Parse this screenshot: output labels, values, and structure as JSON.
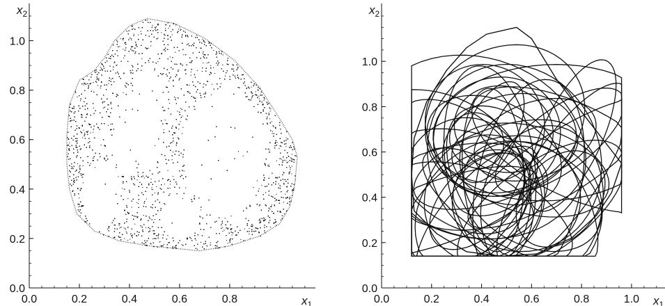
{
  "chart_data": [
    {
      "type": "scatter",
      "title": "",
      "xlabel": "x1",
      "ylabel": "x2",
      "xlabel_parts": {
        "base": "x",
        "sub": "1"
      },
      "ylabel_parts": {
        "base": "x",
        "sub": "2"
      },
      "xlim": [
        0.0,
        1.12
      ],
      "ylim": [
        0.0,
        1.1
      ],
      "x_ticks": [
        0.0,
        0.2,
        0.4,
        0.6,
        0.8
      ],
      "x_tick_labels": [
        "0.0",
        "0.2",
        "0.4",
        "0.6",
        "0.8"
      ],
      "y_ticks": [
        0.0,
        0.2,
        0.4,
        0.6,
        0.8,
        1.0
      ],
      "y_tick_labels": [
        "0.0",
        "0.2",
        "0.4",
        "0.6",
        "0.8",
        "1.0"
      ],
      "grid": false,
      "marker_color": "#111111",
      "series": [
        {
          "outline_points": [
            [
              0.47,
              1.09
            ],
            [
              0.58,
              1.07
            ],
            [
              0.7,
              1.01
            ],
            [
              0.82,
              0.92
            ],
            [
              0.92,
              0.81
            ],
            [
              0.99,
              0.7
            ],
            [
              1.05,
              0.6
            ],
            [
              1.07,
              0.53
            ],
            [
              1.06,
              0.42
            ],
            [
              1.04,
              0.33
            ],
            [
              1.0,
              0.26
            ],
            [
              0.92,
              0.21
            ],
            [
              0.8,
              0.17
            ],
            [
              0.68,
              0.15
            ],
            [
              0.58,
              0.16
            ],
            [
              0.48,
              0.17
            ],
            [
              0.36,
              0.19
            ],
            [
              0.26,
              0.23
            ],
            [
              0.19,
              0.3
            ],
            [
              0.16,
              0.4
            ],
            [
              0.15,
              0.5
            ],
            [
              0.15,
              0.62
            ],
            [
              0.16,
              0.74
            ],
            [
              0.2,
              0.84
            ],
            [
              0.26,
              0.88
            ],
            [
              0.3,
              0.93
            ],
            [
              0.34,
              1.0
            ],
            [
              0.4,
              1.06
            ],
            [
              0.47,
              1.09
            ]
          ]
        }
      ]
    },
    {
      "type": "line",
      "title": "",
      "xlabel": "x1",
      "ylabel": "x2",
      "xlabel_parts": {
        "base": "x",
        "sub": "1"
      },
      "ylabel_parts": {
        "base": "x",
        "sub": "2"
      },
      "xlim": [
        0.0,
        1.12
      ],
      "ylim": [
        0.0,
        1.2
      ],
      "x_ticks": [
        0.0,
        0.2,
        0.4,
        0.6,
        0.8,
        1.0
      ],
      "x_tick_labels": [
        "0.0",
        "0.2",
        "0.4",
        "0.6",
        "0.8",
        "1.0"
      ],
      "y_ticks": [
        0.0,
        0.2,
        0.4,
        0.6,
        0.8,
        1.0
      ],
      "y_tick_labels": [
        "0.0",
        "0.2",
        "0.4",
        "0.6",
        "0.8",
        "1.0"
      ],
      "grid": false,
      "line_color": "#111111",
      "series": [
        {
          "outline_points": [
            [
              0.54,
              1.15
            ],
            [
              0.6,
              1.1
            ],
            [
              0.7,
              0.92
            ],
            [
              0.84,
              0.72
            ],
            [
              0.96,
              0.55
            ],
            [
              0.92,
              0.42
            ],
            [
              0.86,
              0.32
            ],
            [
              0.76,
              0.22
            ],
            [
              0.62,
              0.15
            ],
            [
              0.48,
              0.14
            ],
            [
              0.34,
              0.16
            ],
            [
              0.22,
              0.24
            ],
            [
              0.13,
              0.34
            ],
            [
              0.12,
              0.5
            ],
            [
              0.13,
              0.66
            ],
            [
              0.18,
              0.82
            ],
            [
              0.26,
              0.96
            ],
            [
              0.34,
              1.06
            ],
            [
              0.42,
              1.12
            ],
            [
              0.54,
              1.15
            ]
          ]
        }
      ]
    }
  ]
}
